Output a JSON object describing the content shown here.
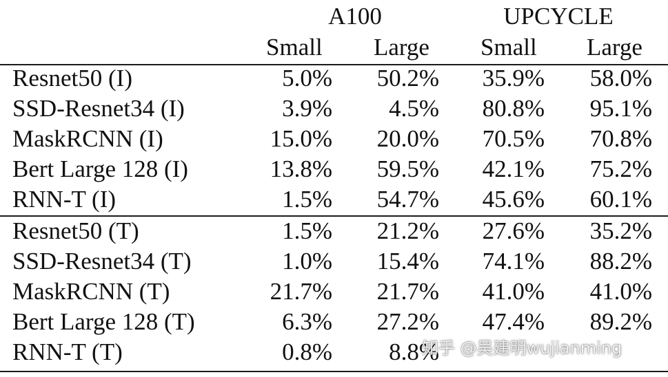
{
  "header": {
    "group_a100": "A100",
    "group_upcycle": "UPCYCLE",
    "a100_small": "Small",
    "a100_large": "Large",
    "upcycle_small": "Small",
    "upcycle_large": "Large"
  },
  "inference_rows": [
    {
      "name": "Resnet50 (I)",
      "a100_small": "5.0%",
      "a100_large": "50.2%",
      "upcycle_small": "35.9%",
      "upcycle_large": "58.0%"
    },
    {
      "name": "SSD-Resnet34 (I)",
      "a100_small": "3.9%",
      "a100_large": "4.5%",
      "upcycle_small": "80.8%",
      "upcycle_large": "95.1%"
    },
    {
      "name": "MaskRCNN (I)",
      "a100_small": "15.0%",
      "a100_large": "20.0%",
      "upcycle_small": "70.5%",
      "upcycle_large": "70.8%"
    },
    {
      "name": "Bert Large 128 (I)",
      "a100_small": "13.8%",
      "a100_large": "59.5%",
      "upcycle_small": "42.1%",
      "upcycle_large": "75.2%"
    },
    {
      "name": "RNN-T (I)",
      "a100_small": "1.5%",
      "a100_large": "54.7%",
      "upcycle_small": "45.6%",
      "upcycle_large": "60.1%"
    }
  ],
  "training_rows": [
    {
      "name": "Resnet50 (T)",
      "a100_small": "1.5%",
      "a100_large": "21.2%",
      "upcycle_small": "27.6%",
      "upcycle_large": "35.2%"
    },
    {
      "name": "SSD-Resnet34 (T)",
      "a100_small": "1.0%",
      "a100_large": "15.4%",
      "upcycle_small": "74.1%",
      "upcycle_large": "88.2%"
    },
    {
      "name": "MaskRCNN (T)",
      "a100_small": "21.7%",
      "a100_large": "21.7%",
      "upcycle_small": "41.0%",
      "upcycle_large": "41.0%"
    },
    {
      "name": "Bert Large 128 (T)",
      "a100_small": "6.3%",
      "a100_large": "27.2%",
      "upcycle_small": "47.4%",
      "upcycle_large": "89.2%"
    },
    {
      "name": "RNN-T (T)",
      "a100_small": "0.8%",
      "a100_large": "8.8%",
      "upcycle_small": "",
      "upcycle_large": ""
    }
  ],
  "watermark": "知乎 @吴建明wujianming"
}
